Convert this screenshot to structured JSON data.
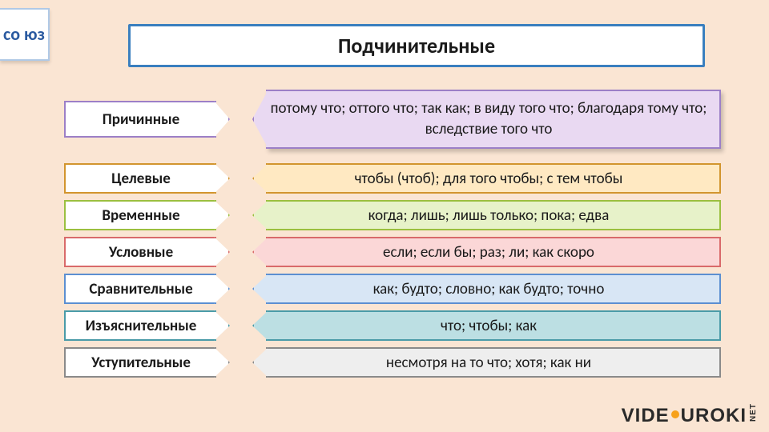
{
  "page": {
    "background_color": "#fae5d3",
    "text_color": "#1a1a1a"
  },
  "badge": {
    "text": "со юз",
    "border_color": "#b0c9e6",
    "bg_color": "#ffffff",
    "text_color": "#2a5aa0"
  },
  "title": {
    "text": "Подчинительные",
    "border_color": "#3a7fbf",
    "bg_color": "#ffffff",
    "text_color": "#1a1a1a"
  },
  "rows": [
    {
      "label": "Причинные",
      "content": "потому что; оттого что; так как; в виду того что; благодаря тому что; вследствие того что",
      "border_color": "#9c7fc7",
      "fill_color": "#e9d9f2",
      "size": "tall"
    },
    {
      "label": "Целевые",
      "content": "чтобы (чтоб); для того чтобы; с тем чтобы",
      "border_color": "#d2952e",
      "fill_color": "#ffe9c2",
      "size": "slim"
    },
    {
      "label": "Временные",
      "content": "когда; лишь; лишь только; пока; едва",
      "border_color": "#9bbf3f",
      "fill_color": "#e7f2c9",
      "size": "slim"
    },
    {
      "label": "Условные",
      "content": "если; если бы; раз; ли; как скоро",
      "border_color": "#d96a6a",
      "fill_color": "#fbd7d7",
      "size": "slim"
    },
    {
      "label": "Сравнительные",
      "content": "как; будто; словно; как будто; точно",
      "border_color": "#5c8fd1",
      "fill_color": "#d8e6f5",
      "size": "slim"
    },
    {
      "label": "Изъяснительные",
      "content": "что; чтобы; как",
      "border_color": "#4a9ba8",
      "fill_color": "#bcdfe3",
      "size": "slim"
    },
    {
      "label": "Уступительные",
      "content": "несмотря на то что; хотя; как ни",
      "border_color": "#8a8a8a",
      "fill_color": "#eeeeee",
      "size": "slim"
    }
  ],
  "watermark": {
    "part1": "VIDE",
    "part2": "UROKI",
    "suffix": "NET",
    "dot_color": "#f7a11a",
    "text_color": "#2a2a2a"
  }
}
